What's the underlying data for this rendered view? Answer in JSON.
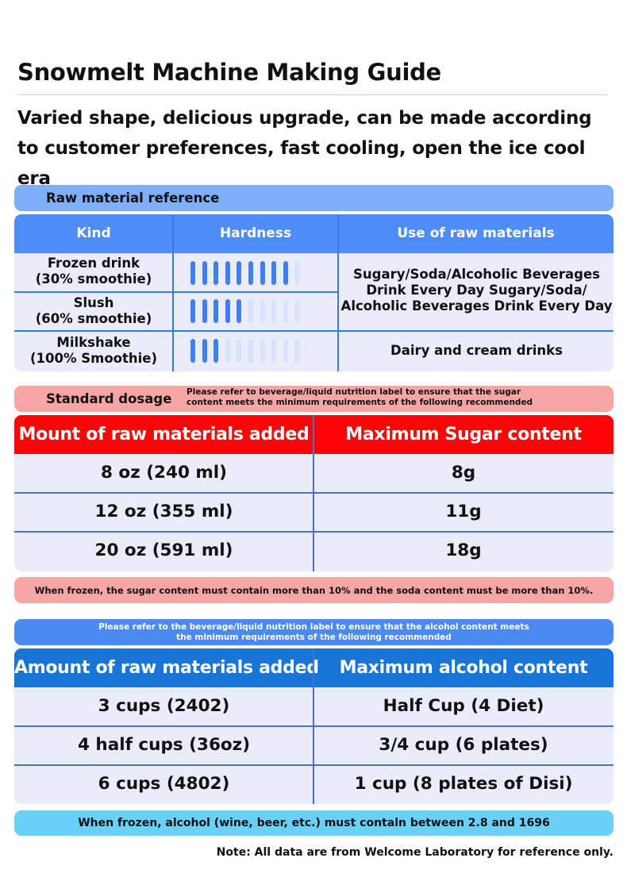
{
  "title": "Snowmelt Machine Making Guide",
  "subtitle": "Varied shape, delicious upgrade, can be made according to customer preferences, fast cooling, open the ice cool era",
  "raw_material": {
    "heading": "Raw material reference",
    "columns": [
      "Kind",
      "Hardness",
      "Use of raw materials"
    ],
    "rows": [
      {
        "kind_line1": "Frozen drink",
        "kind_line2": "(30% smoothie)",
        "hardness": 9,
        "hardness_max": 10
      },
      {
        "kind_line1": "Slush",
        "kind_line2": "(60% smoothie)",
        "hardness": 5,
        "hardness_max": 10
      },
      {
        "kind_line1": "Milkshake",
        "kind_line2": "(100% Smoothie)",
        "hardness": 3,
        "hardness_max": 10
      }
    ],
    "use_1_line1": "Sugary/Soda/Alcoholic Beverages",
    "use_1_line2": "Drink Every Day Sugary/Soda/",
    "use_1_line3": "Alcoholic Beverages Drink Every Day",
    "use_2": "Dairy and cream drinks"
  },
  "sugar": {
    "heading": "Standard dosage",
    "note_line1": "Please refer to beverage/liquid nutrition label to ensure that the sugar",
    "note_line2": "content meets the minimum requirements of the following recommended",
    "columns": [
      "Mount of raw materials added",
      "Maximum Sugar content"
    ],
    "rows": [
      [
        "8 oz (240 ml)",
        "8g"
      ],
      [
        "12 oz (355 ml)",
        "11g"
      ],
      [
        "20 oz (591 ml)",
        "18g"
      ]
    ],
    "footer": "When frozen, the sugar content must contain more than 10% and the soda content must be more than 10%."
  },
  "alcohol": {
    "note_line1": "Please refer to the beverage/liquid nutrition label to ensure that the alcohol content meets",
    "note_line2": "the minimum requirements of the following recommended",
    "columns": [
      "Amount of raw materials added",
      "Maximum alcohol content"
    ],
    "rows": [
      [
        "3 cups (2402)",
        "Half Cup (4 Diet)"
      ],
      [
        "4 half cups (36oz)",
        "3/4 cup (6 plates)"
      ],
      [
        "6 cups (4802)",
        "1 cup (8 plates of Disi)"
      ]
    ],
    "footer": "When frozen, alcohol (wine, beer, etc.) must contaln between 2.8 and 1696"
  },
  "footnote": "Note: All data are from Welcome Laboratory for reference only.",
  "colors": {
    "accent_blue": "#4e8cf7",
    "sugar_red": "#fd0406",
    "alcohol_blue": "#1775d6",
    "pink": "#f8a5a5",
    "cyan": "#6bd0f6"
  }
}
